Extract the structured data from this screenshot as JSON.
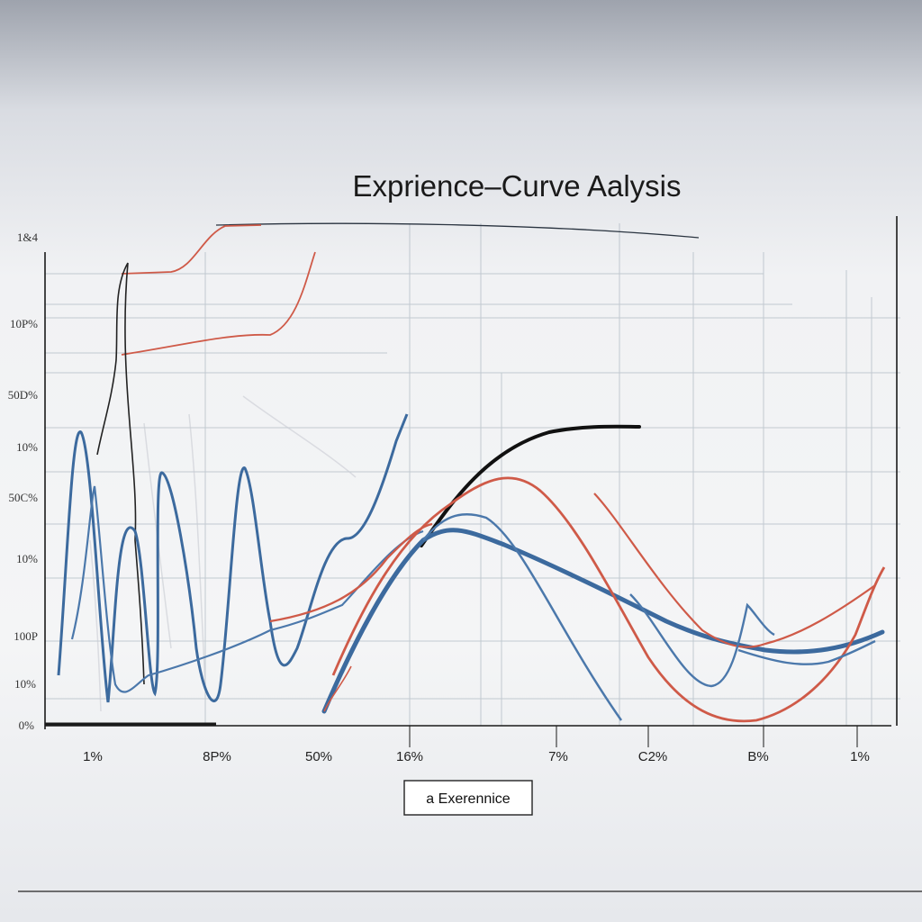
{
  "chart_data": {
    "type": "line",
    "title": "Exprience–Curve Aalysis",
    "y_tick_labels": [
      "1&4",
      "10P%",
      "50D%",
      "10%",
      "50C%",
      "10%",
      "100P",
      "10%",
      "0%"
    ],
    "x_tick_labels": [
      "1%",
      "8P%",
      "50%",
      "16%",
      "7%",
      "C2%",
      "B%",
      "1%"
    ],
    "legend_label": "a Exerennice",
    "grid": true,
    "colors": {
      "blue": "#3c6a9e",
      "red": "#cf5a48",
      "black": "#111111",
      "grid": "#9aa7b3"
    }
  }
}
